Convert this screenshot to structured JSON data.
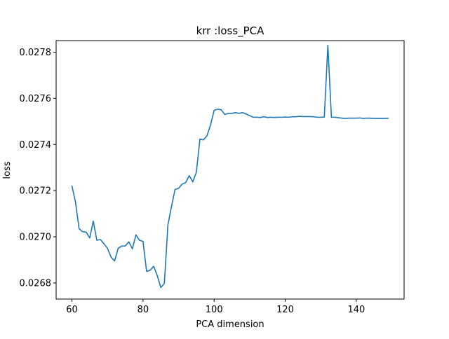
{
  "chart_data": {
    "type": "line",
    "title": "krr :loss_PCA",
    "xlabel": "PCA dimension",
    "ylabel": "loss",
    "xlim": [
      55.55,
      153.45
    ],
    "ylim": [
      0.02673,
      0.02785
    ],
    "grid": false,
    "line_color": "#1f77b4",
    "x_ticks": [
      60,
      80,
      100,
      120,
      140
    ],
    "x_tick_labels": [
      "60",
      "80",
      "100",
      "120",
      "140"
    ],
    "y_ticks": [
      0.0268,
      0.027,
      0.0272,
      0.0274,
      0.0276,
      0.0278
    ],
    "y_tick_labels": [
      "0.0268",
      "0.0270",
      "0.0272",
      "0.0274",
      "0.0276",
      "0.0278"
    ],
    "series": [
      {
        "x": [
          60,
          61,
          62,
          63,
          64,
          65,
          66,
          67,
          68,
          69,
          70,
          71,
          72,
          73,
          74,
          75,
          76,
          77,
          78,
          79,
          80,
          81,
          82,
          83,
          84,
          85,
          86,
          87,
          88,
          89,
          90,
          91,
          92,
          93,
          94,
          95,
          96,
          97,
          98,
          99,
          100,
          101,
          102,
          103,
          104,
          105,
          106,
          107,
          108,
          109,
          110,
          111,
          112,
          113,
          114,
          115,
          116,
          117,
          118,
          119,
          120,
          121,
          122,
          123,
          124,
          125,
          126,
          127,
          128,
          129,
          130,
          131,
          132,
          133,
          134,
          135,
          136,
          137,
          138,
          139,
          140,
          141,
          142,
          143,
          144,
          145,
          146,
          147,
          148,
          149
        ],
        "values": [
          0.02722,
          0.02715,
          0.027035,
          0.027022,
          0.02702,
          0.026995,
          0.027068,
          0.026985,
          0.026988,
          0.02697,
          0.02695,
          0.026912,
          0.026895,
          0.02695,
          0.02696,
          0.02696,
          0.026978,
          0.026948,
          0.027008,
          0.026985,
          0.02698,
          0.02685,
          0.026855,
          0.026872,
          0.026832,
          0.02678,
          0.026798,
          0.027052,
          0.02713,
          0.027205,
          0.02721,
          0.027228,
          0.027235,
          0.027265,
          0.027238,
          0.02728,
          0.027423,
          0.02742,
          0.027438,
          0.027485,
          0.027548,
          0.027553,
          0.02755,
          0.02753,
          0.027535,
          0.027535,
          0.027538,
          0.027535,
          0.027538,
          0.027532,
          0.027525,
          0.027518,
          0.027518,
          0.027517,
          0.02752,
          0.027517,
          0.027518,
          0.027517,
          0.027518,
          0.027518,
          0.027519,
          0.027518,
          0.02752,
          0.02752,
          0.027522,
          0.027521,
          0.027521,
          0.027521,
          0.02752,
          0.027518,
          0.027518,
          0.027519,
          0.02783,
          0.027518,
          0.027518,
          0.027516,
          0.027514,
          0.027513,
          0.027514,
          0.027514,
          0.027514,
          0.027515,
          0.027513,
          0.027514,
          0.027514,
          0.027513,
          0.027513,
          0.027513,
          0.027513,
          0.027514
        ]
      }
    ]
  }
}
